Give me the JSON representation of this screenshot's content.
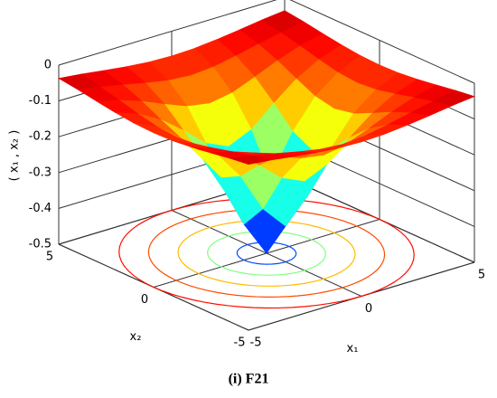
{
  "chart_data": {
    "type": "surface",
    "caption": "(i) F21",
    "xlabel": "x₁",
    "ylabel": "x₂",
    "zlabel": "( x₁ , x₂ )",
    "colormap": "jet",
    "x": [
      -5,
      -4,
      -3,
      -2,
      -1,
      0,
      1,
      2,
      3,
      4,
      5
    ],
    "y": [
      -5,
      -4,
      -3,
      -2,
      -1,
      0,
      1,
      2,
      3,
      4,
      5
    ],
    "z": [
      [
        -0.037,
        -0.044,
        -0.053,
        -0.061,
        -0.067,
        -0.069,
        -0.067,
        -0.061,
        -0.053,
        -0.044,
        -0.037
      ],
      [
        -0.044,
        -0.056,
        -0.069,
        -0.083,
        -0.095,
        -0.1,
        -0.095,
        -0.083,
        -0.069,
        -0.056,
        -0.044
      ],
      [
        -0.053,
        -0.069,
        -0.091,
        -0.118,
        -0.143,
        -0.154,
        -0.143,
        -0.118,
        -0.091,
        -0.069,
        -0.053
      ],
      [
        -0.061,
        -0.083,
        -0.118,
        -0.167,
        -0.222,
        -0.25,
        -0.222,
        -0.167,
        -0.118,
        -0.083,
        -0.061
      ],
      [
        -0.067,
        -0.095,
        -0.143,
        -0.222,
        -0.333,
        -0.4,
        -0.333,
        -0.222,
        -0.143,
        -0.095,
        -0.067
      ],
      [
        -0.069,
        -0.1,
        -0.154,
        -0.25,
        -0.4,
        -0.5,
        -0.4,
        -0.25,
        -0.154,
        -0.1,
        -0.069
      ],
      [
        -0.067,
        -0.095,
        -0.143,
        -0.222,
        -0.333,
        -0.4,
        -0.333,
        -0.222,
        -0.143,
        -0.095,
        -0.067
      ],
      [
        -0.061,
        -0.083,
        -0.118,
        -0.167,
        -0.222,
        -0.25,
        -0.222,
        -0.167,
        -0.118,
        -0.083,
        -0.061
      ],
      [
        -0.053,
        -0.069,
        -0.091,
        -0.118,
        -0.143,
        -0.154,
        -0.143,
        -0.118,
        -0.091,
        -0.069,
        -0.053
      ],
      [
        -0.044,
        -0.056,
        -0.069,
        -0.083,
        -0.095,
        -0.1,
        -0.095,
        -0.083,
        -0.069,
        -0.056,
        -0.044
      ],
      [
        -0.037,
        -0.044,
        -0.053,
        -0.061,
        -0.067,
        -0.069,
        -0.067,
        -0.061,
        -0.053,
        -0.044,
        -0.037
      ]
    ],
    "xlim": [
      -5,
      5
    ],
    "xticks": [
      -5,
      0,
      5
    ],
    "ylim": [
      -5,
      5
    ],
    "yticks": [
      -5,
      0,
      5
    ],
    "zlim": [
      -0.5,
      0
    ],
    "zticks": [
      -0.5,
      -0.4,
      -0.3,
      -0.2,
      -0.1,
      0
    ],
    "grid": true
  }
}
